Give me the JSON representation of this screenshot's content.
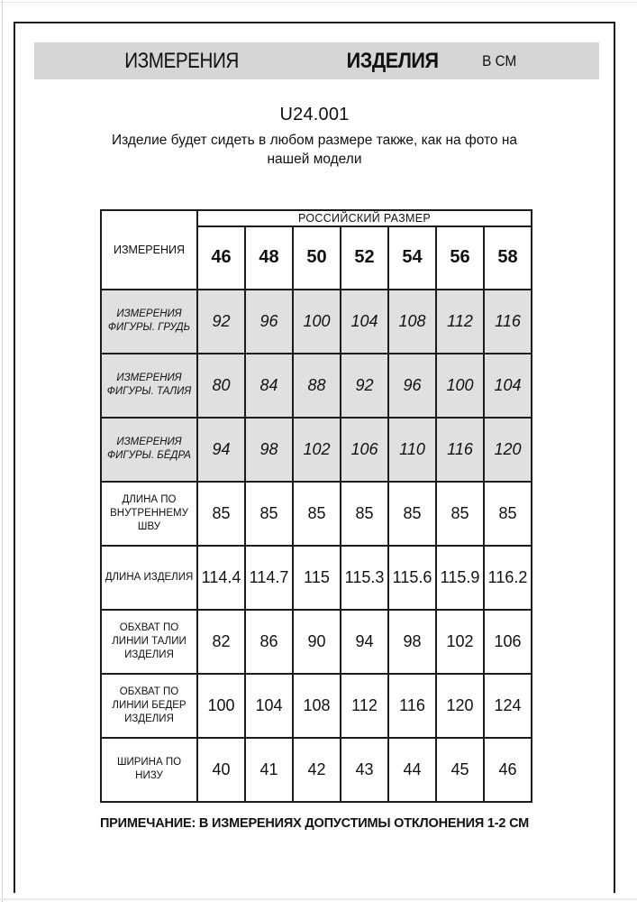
{
  "page": {
    "title": {
      "word1": "ИЗМЕРЕНИЯ",
      "word2": "ИЗДЕЛИЯ",
      "unit": "В СМ"
    },
    "article": "U24.001",
    "subtitle": "Изделие будет сидеть в любом размере также, как на фото на нашей модели",
    "note": "ПРИМЕЧАНИЕ: В ИЗМЕРЕНИЯХ ДОПУСТИМЫ ОТКЛОНЕНИЯ 1-2 СМ"
  },
  "table": {
    "corner_header": "ИЗМЕРЕНИЯ",
    "size_group_header": "РОССИЙСКИЙ РАЗМЕР",
    "sizes": [
      "46",
      "48",
      "50",
      "52",
      "54",
      "56",
      "58"
    ],
    "rows": [
      {
        "label": "ИЗМЕРЕНИЯ ФИГУРЫ. ГРУДЬ",
        "shaded": true,
        "values": [
          "92",
          "96",
          "100",
          "104",
          "108",
          "112",
          "116"
        ]
      },
      {
        "label": "ИЗМЕРЕНИЯ ФИГУРЫ. ТАЛИЯ",
        "shaded": true,
        "values": [
          "80",
          "84",
          "88",
          "92",
          "96",
          "100",
          "104"
        ]
      },
      {
        "label": "ИЗМЕРЕНИЯ ФИГУРЫ. БЁДРА",
        "shaded": true,
        "values": [
          "94",
          "98",
          "102",
          "106",
          "110",
          "116",
          "120"
        ]
      },
      {
        "label": "ДЛИНА ПО ВНУТРЕННЕМУ ШВУ",
        "shaded": false,
        "values": [
          "85",
          "85",
          "85",
          "85",
          "85",
          "85",
          "85"
        ]
      },
      {
        "label": "ДЛИНА ИЗДЕЛИЯ",
        "shaded": false,
        "values": [
          "114.4",
          "114.7",
          "115",
          "115.3",
          "115.6",
          "115.9",
          "116.2"
        ]
      },
      {
        "label": "ОБХВАТ ПО ЛИНИИ ТАЛИИ ИЗДЕЛИЯ",
        "shaded": false,
        "values": [
          "82",
          "86",
          "90",
          "94",
          "98",
          "102",
          "106"
        ]
      },
      {
        "label": "ОБХВАТ ПО ЛИНИИ БЕДЕР ИЗДЕЛИЯ",
        "shaded": false,
        "values": [
          "100",
          "104",
          "108",
          "112",
          "116",
          "120",
          "124"
        ]
      },
      {
        "label": "ШИРИНА ПО НИЗУ",
        "shaded": false,
        "values": [
          "40",
          "41",
          "42",
          "43",
          "44",
          "45",
          "46"
        ]
      }
    ]
  },
  "colors": {
    "title_bar_bg": "#d6d6d6",
    "shaded_row_bg": "#e0e0e0",
    "border": "#1c1c1c"
  }
}
